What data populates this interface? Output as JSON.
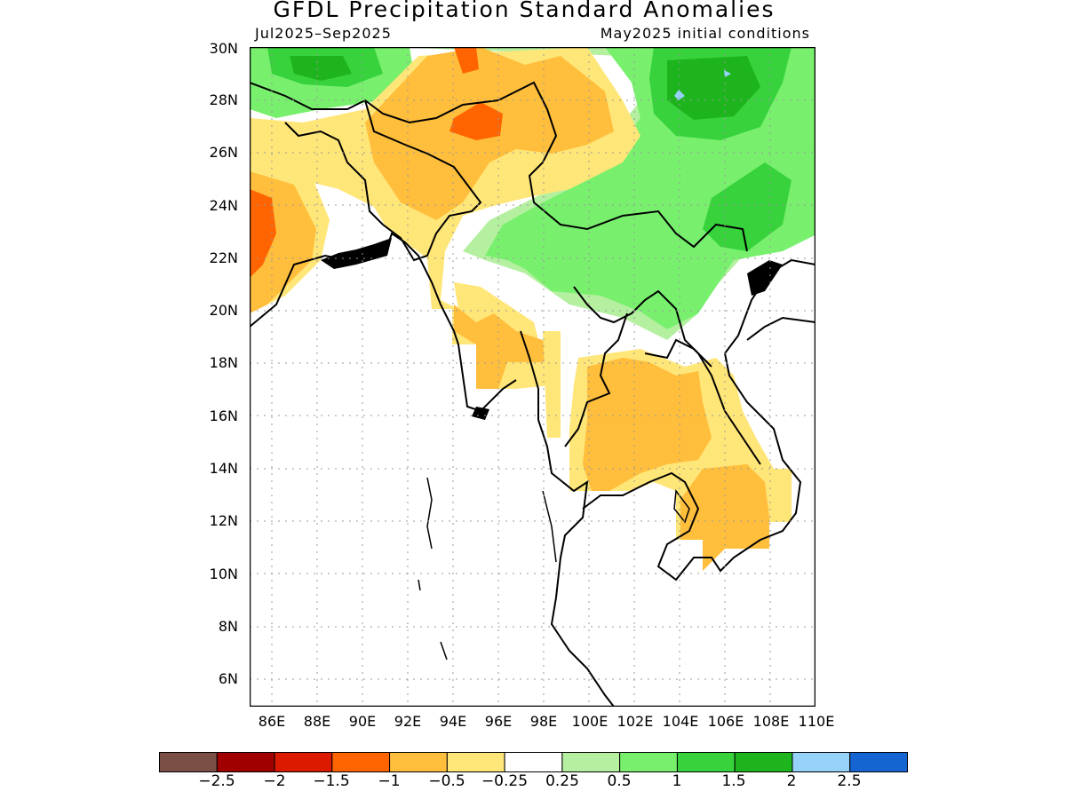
{
  "title": "GFDL Precipitation Standard Anomalies",
  "period": "Jul2025–Sep2025",
  "init": "May2025 initial conditions",
  "map": {
    "lat_labels": [
      "30N",
      "28N",
      "26N",
      "24N",
      "22N",
      "20N",
      "18N",
      "16N",
      "14N",
      "12N",
      "10N",
      "8N",
      "6N"
    ],
    "lon_labels": [
      "86E",
      "88E",
      "90E",
      "92E",
      "94E",
      "96E",
      "98E",
      "100E",
      "102E",
      "104E",
      "106E",
      "108E",
      "110E"
    ],
    "lon_range": [
      85,
      110
    ],
    "lat_range": [
      5,
      30
    ],
    "grid": "dotted"
  },
  "colorbar": {
    "labels": [
      "−2.5",
      "−2",
      "−1.5",
      "−1",
      "−0.5",
      "−0.25",
      "0.25",
      "0.5",
      "1",
      "1.5",
      "2",
      "2.5"
    ],
    "colors": [
      "#7a5046",
      "#a00000",
      "#dc1a00",
      "#ff6400",
      "#ffbe3c",
      "#ffe678",
      "#ffffff",
      "#b4f0a0",
      "#78f06e",
      "#37d23c",
      "#1eb41e",
      "#96d2fa",
      "#1464d2"
    ]
  }
}
